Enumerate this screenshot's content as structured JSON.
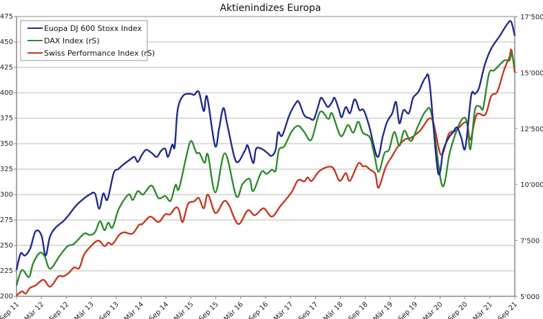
{
  "chart_data": {
    "type": "line",
    "title": "Aktienindizes Europa",
    "x_unit": "months since Sep 2011",
    "x_ticks": [
      "Sep 11",
      "Mär 12",
      "Sep 12",
      "Mär 13",
      "Sep 13",
      "Mär 14",
      "Sep 14",
      "Mär 15",
      "Sep 15",
      "Mär 16",
      "Sep 16",
      "Mär 17",
      "Sep 17",
      "Mär 18",
      "Sep 18",
      "Mär 19",
      "Sep 19",
      "Mär 20",
      "Sep 20",
      "Mär 21",
      "Sep 21"
    ],
    "x_range": [
      0,
      120
    ],
    "y_left": {
      "range": [
        200,
        475
      ],
      "ticks": [
        "200",
        "225",
        "250",
        "275",
        "300",
        "325",
        "350",
        "375",
        "400",
        "425",
        "450",
        "475"
      ]
    },
    "y_right": {
      "range": [
        5000,
        17500
      ],
      "ticks": [
        "5'000",
        "7'500",
        "10'000",
        "12'500",
        "15'000",
        "17'500"
      ]
    },
    "grid": true,
    "legend_position": "top-left",
    "series": [
      {
        "name": "Euopa DJ 600 Stoxx Index",
        "axis": "left",
        "color": "#1f2a8a",
        "points": [
          [
            0,
            226
          ],
          [
            1,
            242
          ],
          [
            2,
            240
          ],
          [
            3.3,
            247
          ],
          [
            4.6,
            264
          ],
          [
            6,
            260
          ],
          [
            7,
            240
          ],
          [
            8,
            258
          ],
          [
            9.3,
            267
          ],
          [
            11.3,
            274
          ],
          [
            12.6,
            280
          ],
          [
            14.3,
            289
          ],
          [
            15.9,
            295
          ],
          [
            17.6,
            300
          ],
          [
            18.9,
            301
          ],
          [
            19.9,
            286
          ],
          [
            20.9,
            301
          ],
          [
            21.9,
            295
          ],
          [
            23.4,
            321
          ],
          [
            24.5,
            325
          ],
          [
            25.9,
            330
          ],
          [
            27.2,
            334
          ],
          [
            28.4,
            337
          ],
          [
            29.2,
            332
          ],
          [
            30.2,
            339
          ],
          [
            31.2,
            344
          ],
          [
            32.5,
            341
          ],
          [
            33.8,
            337
          ],
          [
            34.8,
            343
          ],
          [
            35.8,
            345
          ],
          [
            36.5,
            337
          ],
          [
            37.5,
            349
          ],
          [
            38.1,
            347
          ],
          [
            38.8,
            383
          ],
          [
            40.1,
            397
          ],
          [
            41.8,
            399
          ],
          [
            42.8,
            398
          ],
          [
            43.9,
            401
          ],
          [
            45.1,
            382
          ],
          [
            45.9,
            396
          ],
          [
            47.8,
            348
          ],
          [
            48.8,
            365
          ],
          [
            49.8,
            385
          ],
          [
            50.7,
            370
          ],
          [
            52.4,
            338
          ],
          [
            53.4,
            332
          ],
          [
            55.1,
            344
          ],
          [
            55.7,
            348
          ],
          [
            57,
            331
          ],
          [
            57.7,
            345
          ],
          [
            59,
            345
          ],
          [
            60.4,
            341
          ],
          [
            61.4,
            338
          ],
          [
            62.4,
            344
          ],
          [
            63,
            361
          ],
          [
            64,
            358
          ],
          [
            65.7,
            378
          ],
          [
            67.3,
            390
          ],
          [
            68,
            391
          ],
          [
            69.3,
            378
          ],
          [
            70.6,
            375
          ],
          [
            71.6,
            374
          ],
          [
            72.6,
            386
          ],
          [
            73.3,
            395
          ],
          [
            74,
            392
          ],
          [
            75,
            386
          ],
          [
            76,
            391
          ],
          [
            76.6,
            395
          ],
          [
            77.6,
            384
          ],
          [
            78.3,
            376
          ],
          [
            79.3,
            386
          ],
          [
            80.3,
            380
          ],
          [
            81.3,
            393
          ],
          [
            81.9,
            391
          ],
          [
            82.6,
            383
          ],
          [
            83.6,
            383
          ],
          [
            84.9,
            368
          ],
          [
            86.9,
            337
          ],
          [
            88.2,
            357
          ],
          [
            89.2,
            371
          ],
          [
            90.5,
            380
          ],
          [
            91.4,
            391
          ],
          [
            92.2,
            370
          ],
          [
            93.2,
            383
          ],
          [
            94.5,
            380
          ],
          [
            95.5,
            395
          ],
          [
            96.8,
            401
          ],
          [
            98.5,
            415
          ],
          [
            99.5,
            409
          ],
          [
            101.5,
            322
          ],
          [
            102.8,
            344
          ],
          [
            104.1,
            356
          ],
          [
            105.1,
            361
          ],
          [
            106.1,
            366
          ],
          [
            107.1,
            356
          ],
          [
            108.1,
            346
          ],
          [
            109.5,
            397
          ],
          [
            110.4,
            399
          ],
          [
            111.4,
            405
          ],
          [
            112.8,
            428
          ],
          [
            114.4,
            444
          ],
          [
            116.4,
            456
          ],
          [
            118.1,
            467
          ],
          [
            119.1,
            470
          ],
          [
            120,
            456
          ]
        ]
      },
      {
        "name": "DAX Index (rS)",
        "axis": "right",
        "color": "#2e8a2e",
        "points": [
          [
            0,
            5490
          ],
          [
            1.3,
            6170
          ],
          [
            3,
            5860
          ],
          [
            4,
            6470
          ],
          [
            5.6,
            6940
          ],
          [
            6.8,
            6780
          ],
          [
            8.1,
            6230
          ],
          [
            10.4,
            6810
          ],
          [
            12.3,
            7240
          ],
          [
            13.8,
            7340
          ],
          [
            16.3,
            7800
          ],
          [
            17.6,
            7740
          ],
          [
            18.9,
            7860
          ],
          [
            20.1,
            8350
          ],
          [
            21.2,
            7950
          ],
          [
            22.1,
            8290
          ],
          [
            23.1,
            8070
          ],
          [
            24.7,
            8930
          ],
          [
            27,
            9550
          ],
          [
            28,
            9300
          ],
          [
            29.2,
            9700
          ],
          [
            30.5,
            9550
          ],
          [
            32.5,
            9950
          ],
          [
            34.2,
            9390
          ],
          [
            35.8,
            9480
          ],
          [
            37.1,
            9270
          ],
          [
            38.3,
            9980
          ],
          [
            39.1,
            9790
          ],
          [
            40.8,
            11170
          ],
          [
            42,
            11940
          ],
          [
            43.3,
            11420
          ],
          [
            44.1,
            11390
          ],
          [
            45.3,
            10960
          ],
          [
            46.1,
            11330
          ],
          [
            47.9,
            9640
          ],
          [
            50.2,
            11390
          ],
          [
            52.9,
            9480
          ],
          [
            54.4,
            10010
          ],
          [
            56.1,
            10250
          ],
          [
            57,
            9700
          ],
          [
            59,
            10560
          ],
          [
            60.2,
            10470
          ],
          [
            61.5,
            10650
          ],
          [
            62.4,
            10620
          ],
          [
            63.2,
            11540
          ],
          [
            64.5,
            11700
          ],
          [
            66.2,
            12340
          ],
          [
            67.8,
            12620
          ],
          [
            69.3,
            12340
          ],
          [
            71,
            12000
          ],
          [
            73.1,
            13230
          ],
          [
            75.1,
            12920
          ],
          [
            76,
            13170
          ],
          [
            78.1,
            12160
          ],
          [
            79.8,
            12650
          ],
          [
            81.1,
            12310
          ],
          [
            82.3,
            12800
          ],
          [
            83.4,
            12310
          ],
          [
            85.1,
            12100
          ],
          [
            86.1,
            11390
          ],
          [
            87.2,
            10560
          ],
          [
            88.6,
            11390
          ],
          [
            89.7,
            11540
          ],
          [
            91,
            12340
          ],
          [
            92.2,
            11730
          ],
          [
            93.4,
            12400
          ],
          [
            95,
            11940
          ],
          [
            96.8,
            12650
          ],
          [
            98.5,
            13260
          ],
          [
            100,
            13110
          ],
          [
            102.5,
            9950
          ],
          [
            104.3,
            11390
          ],
          [
            106,
            12400
          ],
          [
            107.5,
            12950
          ],
          [
            108.5,
            12770
          ],
          [
            109.3,
            11570
          ],
          [
            110.4,
            13320
          ],
          [
            111.6,
            13480
          ],
          [
            112.4,
            13420
          ],
          [
            113.8,
            14950
          ],
          [
            115.1,
            15100
          ],
          [
            117.4,
            15530
          ],
          [
            118.7,
            15530
          ],
          [
            119.2,
            15840
          ],
          [
            120,
            15230
          ]
        ]
      },
      {
        "name": "Swiss Performance Index (rS)",
        "axis": "right",
        "color": "#c8361e",
        "points": [
          [
            0,
            5030
          ],
          [
            1.3,
            5220
          ],
          [
            2.2,
            5120
          ],
          [
            3.2,
            5370
          ],
          [
            4.6,
            5490
          ],
          [
            6.5,
            5740
          ],
          [
            8.1,
            5430
          ],
          [
            10.1,
            5890
          ],
          [
            11.3,
            5890
          ],
          [
            12.6,
            6050
          ],
          [
            13.9,
            6290
          ],
          [
            15.1,
            6260
          ],
          [
            16.3,
            6870
          ],
          [
            17.9,
            7240
          ],
          [
            19.7,
            7490
          ],
          [
            21.2,
            7240
          ],
          [
            22.1,
            7400
          ],
          [
            23.1,
            7330
          ],
          [
            24.7,
            7730
          ],
          [
            25.9,
            7860
          ],
          [
            27.9,
            7800
          ],
          [
            29.5,
            8190
          ],
          [
            30.3,
            8230
          ],
          [
            32.2,
            8560
          ],
          [
            34.2,
            8320
          ],
          [
            35.8,
            8660
          ],
          [
            37,
            8660
          ],
          [
            38.3,
            8960
          ],
          [
            39.1,
            8870
          ],
          [
            40,
            8320
          ],
          [
            41.3,
            9120
          ],
          [
            42.8,
            9240
          ],
          [
            43.9,
            9390
          ],
          [
            45.1,
            8930
          ],
          [
            46.1,
            9550
          ],
          [
            47.9,
            8720
          ],
          [
            49.9,
            9240
          ],
          [
            51.1,
            9090
          ],
          [
            53.4,
            8230
          ],
          [
            55.7,
            8840
          ],
          [
            57.4,
            8620
          ],
          [
            59.5,
            8930
          ],
          [
            61.5,
            8560
          ],
          [
            63.5,
            9020
          ],
          [
            66.2,
            9640
          ],
          [
            67.8,
            10190
          ],
          [
            69.3,
            10130
          ],
          [
            70.1,
            10310
          ],
          [
            71.1,
            10160
          ],
          [
            73.1,
            10620
          ],
          [
            76,
            10770
          ],
          [
            77.8,
            10160
          ],
          [
            79.3,
            10500
          ],
          [
            80.3,
            10160
          ],
          [
            82.3,
            10930
          ],
          [
            83.4,
            10810
          ],
          [
            84.2,
            10810
          ],
          [
            85.2,
            10650
          ],
          [
            86.4,
            10470
          ],
          [
            87.2,
            9850
          ],
          [
            88.9,
            10770
          ],
          [
            90.5,
            11270
          ],
          [
            91.9,
            11700
          ],
          [
            93.5,
            12000
          ],
          [
            95.2,
            12100
          ],
          [
            97.2,
            12400
          ],
          [
            100,
            12920
          ],
          [
            102.2,
            11330
          ],
          [
            104.1,
            12250
          ],
          [
            105.8,
            12400
          ],
          [
            108.3,
            12770
          ],
          [
            109.3,
            12000
          ],
          [
            110.8,
            13110
          ],
          [
            112.9,
            13110
          ],
          [
            114.3,
            13940
          ],
          [
            115.8,
            14150
          ],
          [
            117.4,
            15100
          ],
          [
            118.7,
            15690
          ],
          [
            119.2,
            16000
          ],
          [
            120,
            15010
          ]
        ]
      }
    ]
  }
}
